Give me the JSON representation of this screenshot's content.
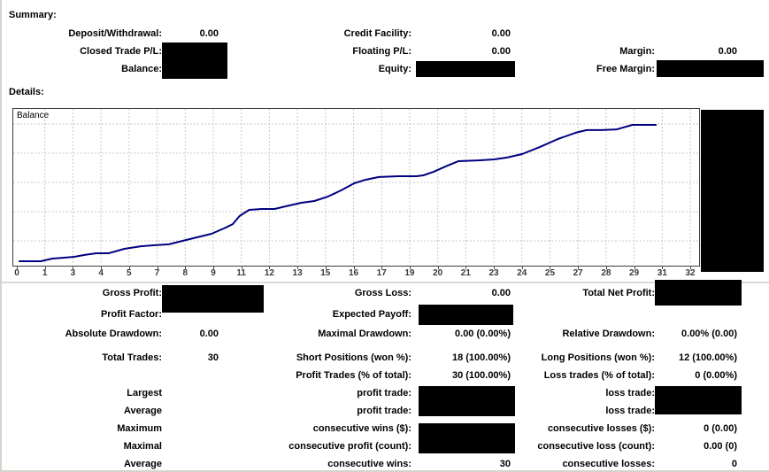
{
  "summary": {
    "heading": "Summary:",
    "rows": [
      {
        "c1l": "Deposit/Withdrawal:",
        "c1v": "0.00",
        "c2l": "Credit Facility:",
        "c2v": "0.00"
      },
      {
        "c1l": "Closed Trade P/L:",
        "c2l": "Floating P/L:",
        "c2v": "0.00",
        "c3l": "Margin:",
        "c3v": "0.00"
      },
      {
        "c1l": "Balance:",
        "c2l": "Equity:",
        "c3l": "Free Margin:"
      }
    ]
  },
  "details": {
    "heading": "Details:",
    "rows": [
      {
        "c1l": "Gross Profit:",
        "c2l": "Gross Loss:",
        "c2v": "0.00",
        "c3l": "Total Net Profit:"
      },
      {
        "c1l": "Profit Factor:",
        "c2l": "Expected Payoff:"
      },
      {
        "c1l": "Absolute Drawdown:",
        "c1v": "0.00",
        "c2l": "Maximal Drawdown:",
        "c2v": "0.00 (0.00%)",
        "c3l": "Relative Drawdown:",
        "c3v": "0.00% (0.00)"
      },
      {
        "c1l": "Total Trades:",
        "c1v": "30",
        "c2l": "Short Positions (won %):",
        "c2v": "18 (100.00%)",
        "c3l": "Long Positions (won %):",
        "c3v": "12 (100.00%)"
      },
      {
        "c2l": "Profit Trades (% of total):",
        "c2v": "30 (100.00%)",
        "c3l": "Loss trades (% of total):",
        "c3v": "0 (0.00%)"
      },
      {
        "c1l": "Largest",
        "c2l": "profit trade:",
        "c3l": "loss trade:"
      },
      {
        "c1l": "Average",
        "c2l": "profit trade:",
        "c3l": "loss trade:"
      },
      {
        "c1l": "Maximum",
        "c2l": "consecutive wins ($):",
        "c3l": "consecutive losses ($):",
        "c3v": "0 (0.00)"
      },
      {
        "c1l": "Maximal",
        "c2l": "consecutive profit (count):",
        "c3l": "consecutive loss (count):",
        "c3v": "0.00 (0)"
      },
      {
        "c1l": "Average",
        "c2l": "consecutive wins:",
        "c2v": "30",
        "c3l": "consecutive losses:",
        "c3v": "0"
      }
    ]
  },
  "chart_data": {
    "type": "line",
    "title": "Balance",
    "xlabel": "",
    "ylabel": "",
    "grid": true,
    "x_tick_labels": [
      "0",
      "1",
      "3",
      "4",
      "5",
      "7",
      "8",
      "9",
      "11",
      "12",
      "13",
      "15",
      "16",
      "17",
      "19",
      "20",
      "21",
      "23",
      "24",
      "25",
      "27",
      "28",
      "29",
      "31",
      "32"
    ],
    "y_tick_labels": [],
    "x_range": [
      0,
      32
    ],
    "series": [
      {
        "name": "Balance",
        "color": "#000080",
        "points": [
          [
            0.008,
            0.023
          ],
          [
            0.04,
            0.023
          ],
          [
            0.057,
            0.04
          ],
          [
            0.072,
            0.045
          ],
          [
            0.089,
            0.051
          ],
          [
            0.104,
            0.063
          ],
          [
            0.121,
            0.074
          ],
          [
            0.139,
            0.074
          ],
          [
            0.162,
            0.102
          ],
          [
            0.186,
            0.119
          ],
          [
            0.204,
            0.125
          ],
          [
            0.227,
            0.131
          ],
          [
            0.246,
            0.153
          ],
          [
            0.268,
            0.176
          ],
          [
            0.289,
            0.199
          ],
          [
            0.307,
            0.233
          ],
          [
            0.32,
            0.261
          ],
          [
            0.33,
            0.313
          ],
          [
            0.344,
            0.352
          ],
          [
            0.362,
            0.358
          ],
          [
            0.381,
            0.358
          ],
          [
            0.397,
            0.375
          ],
          [
            0.42,
            0.398
          ],
          [
            0.439,
            0.409
          ],
          [
            0.459,
            0.438
          ],
          [
            0.478,
            0.477
          ],
          [
            0.497,
            0.523
          ],
          [
            0.513,
            0.545
          ],
          [
            0.533,
            0.563
          ],
          [
            0.562,
            0.568
          ],
          [
            0.588,
            0.568
          ],
          [
            0.598,
            0.574
          ],
          [
            0.613,
            0.597
          ],
          [
            0.633,
            0.636
          ],
          [
            0.649,
            0.665
          ],
          [
            0.678,
            0.67
          ],
          [
            0.701,
            0.676
          ],
          [
            0.72,
            0.688
          ],
          [
            0.742,
            0.71
          ],
          [
            0.768,
            0.756
          ],
          [
            0.794,
            0.807
          ],
          [
            0.82,
            0.847
          ],
          [
            0.836,
            0.864
          ],
          [
            0.858,
            0.864
          ],
          [
            0.88,
            0.869
          ],
          [
            0.903,
            0.898
          ],
          [
            0.938,
            0.898
          ]
        ]
      }
    ]
  },
  "colors": {
    "line": "#000080",
    "grid": "#c9c9c9",
    "redaction": "#000000"
  }
}
